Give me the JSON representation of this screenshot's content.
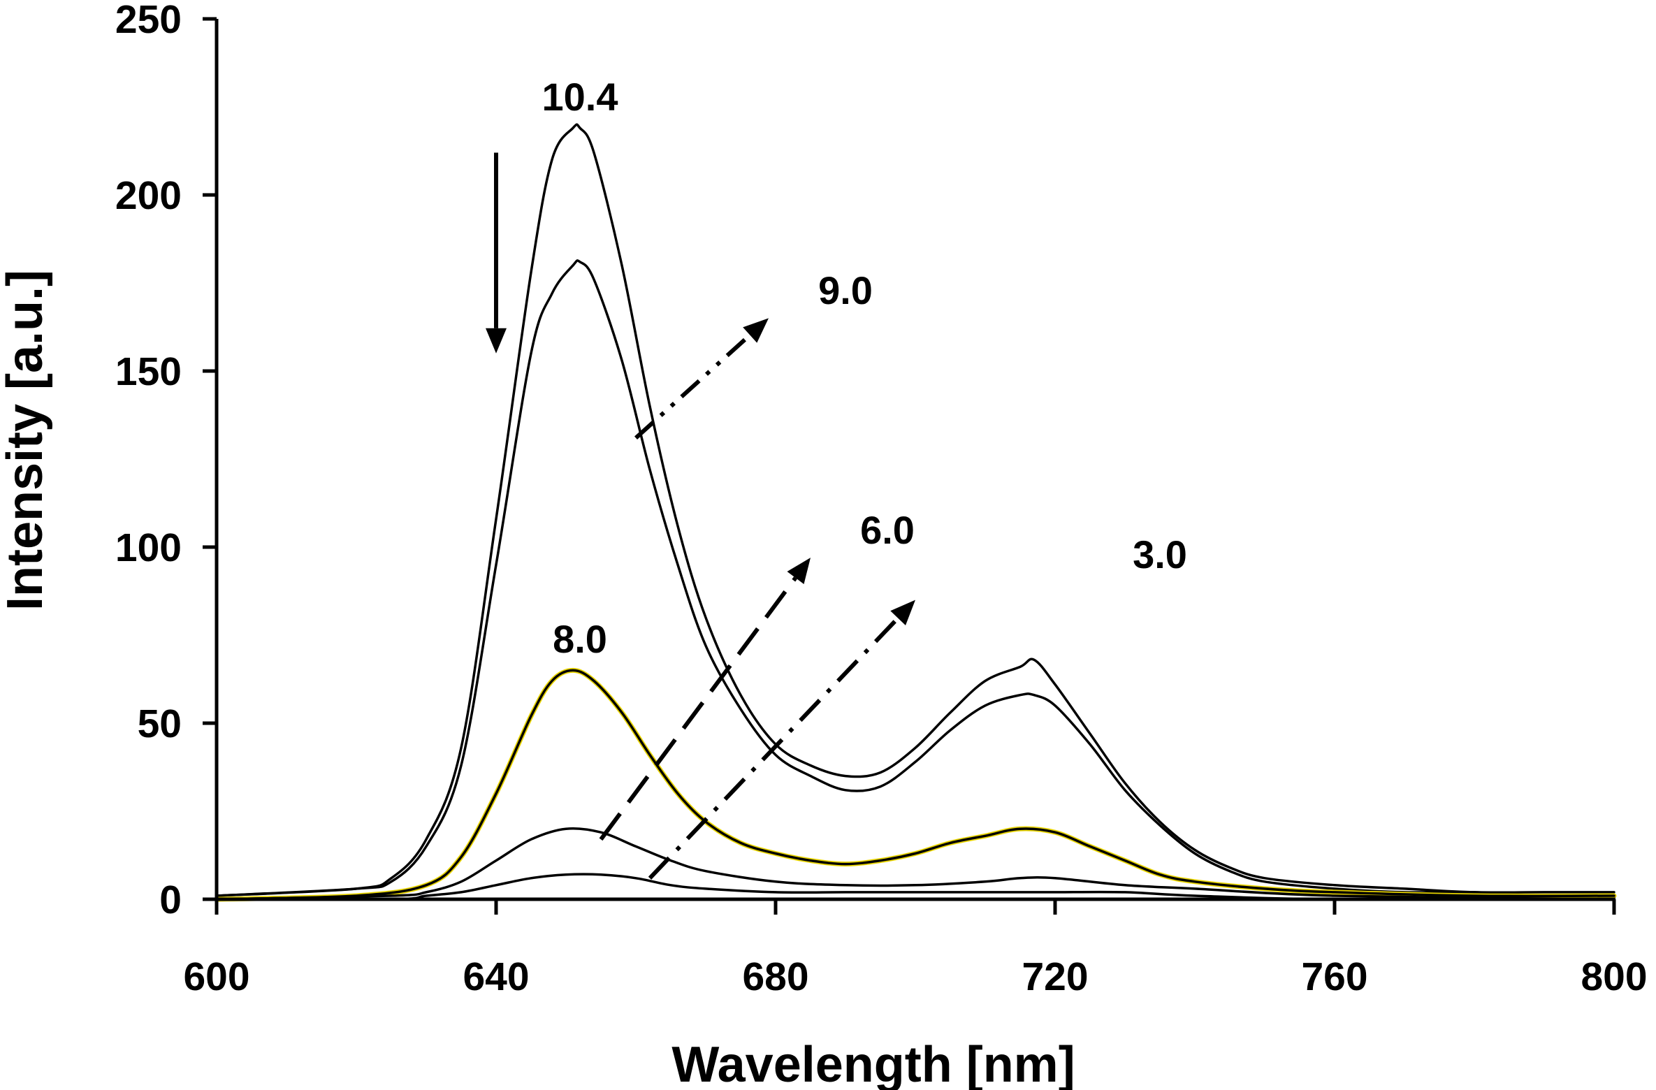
{
  "chart_data": {
    "type": "line",
    "title": "",
    "xlabel": "Wavelength [nm]",
    "ylabel": "Intensity [a.u.]",
    "xlim": [
      600,
      800
    ],
    "ylim": [
      0,
      250
    ],
    "xticks": [
      600,
      640,
      680,
      720,
      760,
      800
    ],
    "xtick_labels": [
      "600",
      "640",
      "680",
      "720",
      "760",
      "800"
    ],
    "yticks": [
      0,
      50,
      100,
      150,
      200,
      250
    ],
    "ytick_labels": [
      "0",
      "50",
      "100",
      "150",
      "200",
      "250"
    ],
    "grid": false,
    "legend": "none",
    "colors": {
      "line": "#000000",
      "highlight": "#e8d400",
      "background": "#ffffff"
    },
    "series": [
      {
        "name": "10.4",
        "x": [
          600,
          620,
          625,
          630,
          635,
          640,
          645,
          648,
          651,
          652,
          654,
          658,
          662,
          666,
          670,
          675,
          680,
          685,
          690,
          695,
          700,
          705,
          710,
          715,
          717,
          720,
          725,
          730,
          735,
          740,
          745,
          750,
          760,
          770,
          780,
          790,
          800
        ],
        "y": [
          1,
          3,
          6,
          17,
          43,
          108,
          178,
          210,
          219,
          219,
          212,
          180,
          140,
          106,
          80,
          58,
          44,
          38,
          35,
          36,
          43,
          53,
          62,
          66,
          68,
          61,
          47,
          33,
          22,
          14,
          9,
          6,
          4,
          3,
          2,
          2,
          2
        ]
      },
      {
        "name": "9.0",
        "x": [
          600,
          620,
          625,
          630,
          635,
          640,
          645,
          648,
          651,
          652,
          654,
          658,
          662,
          666,
          670,
          675,
          680,
          685,
          690,
          695,
          700,
          705,
          710,
          715,
          717,
          720,
          725,
          730,
          735,
          740,
          745,
          750,
          760,
          770,
          780,
          790,
          800
        ],
        "y": [
          1,
          3,
          5,
          15,
          38,
          95,
          155,
          172,
          180,
          181,
          176,
          153,
          122,
          95,
          72,
          54,
          41,
          35,
          31,
          32,
          39,
          48,
          55,
          58,
          58,
          55,
          44,
          31,
          21,
          13,
          8,
          5,
          3,
          2,
          2,
          1,
          1
        ]
      },
      {
        "name": "8.0",
        "x": [
          600,
          620,
          630,
          635,
          640,
          645,
          648,
          651,
          654,
          658,
          662,
          666,
          670,
          675,
          680,
          685,
          690,
          695,
          700,
          705,
          710,
          715,
          720,
          725,
          730,
          735,
          740,
          750,
          760,
          780,
          800
        ],
        "y": [
          0,
          1,
          4,
          12,
          30,
          52,
          62,
          65,
          62,
          53,
          41,
          30,
          22,
          16,
          13,
          11,
          10,
          11,
          13,
          16,
          18,
          20,
          19,
          15,
          11,
          7,
          5,
          3,
          2,
          1,
          1
        ]
      },
      {
        "name": "6.0",
        "x": [
          600,
          625,
          630,
          635,
          640,
          645,
          650,
          655,
          660,
          665,
          670,
          680,
          690,
          700,
          710,
          715,
          720,
          730,
          740,
          760,
          800
        ],
        "y": [
          0,
          1,
          2,
          5,
          11,
          17,
          20,
          19,
          15,
          11,
          8,
          5,
          4,
          4,
          5,
          6,
          6,
          4,
          3,
          1,
          0
        ]
      },
      {
        "name": "3.0",
        "x": [
          600,
          625,
          630,
          635,
          640,
          645,
          650,
          655,
          660,
          665,
          670,
          680,
          690,
          700,
          710,
          715,
          720,
          730,
          740,
          760,
          800
        ],
        "y": [
          0,
          0,
          1,
          2,
          4,
          6,
          7,
          7,
          6,
          4,
          3,
          2,
          2,
          2,
          2,
          2,
          2,
          2,
          1,
          0,
          0
        ]
      }
    ],
    "annotations": [
      {
        "text": "10.4",
        "x": 652,
        "y": 228
      },
      {
        "text": "9.0",
        "x": 690,
        "y": 173
      },
      {
        "text": "8.0",
        "x": 652,
        "y": 74
      },
      {
        "text": "6.0",
        "x": 696,
        "y": 105
      },
      {
        "text": "3.0",
        "x": 735,
        "y": 98
      }
    ],
    "arrows": [
      {
        "style": "solid",
        "from": [
          640,
          212
        ],
        "to": [
          640,
          155
        ]
      },
      {
        "style": "dash-dot-dot",
        "from": [
          660,
          131
        ],
        "to": [
          679,
          165
        ]
      },
      {
        "style": "dashed",
        "from": [
          655,
          17
        ],
        "to": [
          685,
          97
        ]
      },
      {
        "style": "dash-dot",
        "from": [
          662,
          6
        ],
        "to": [
          700,
          85
        ]
      }
    ]
  }
}
